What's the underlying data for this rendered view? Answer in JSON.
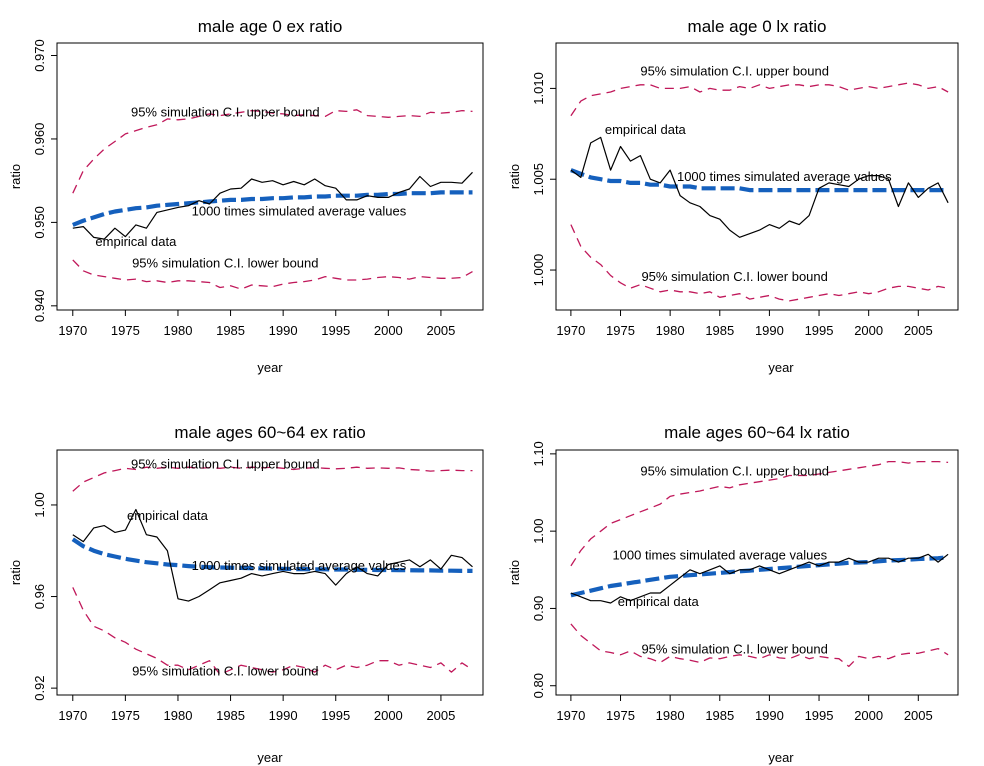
{
  "colors": {
    "empirical": "#000000",
    "average": "#1560bd",
    "bounds": "#c0185a",
    "axis": "#000000"
  },
  "chart_data": [
    {
      "type": "line",
      "title": "male age 0 ex ratio",
      "xlabel": "year",
      "ylabel": "ratio",
      "xlim": [
        1968.5,
        2009
      ],
      "ylim": [
        0.9395,
        0.9715
      ],
      "xticks": [
        1970,
        1975,
        1980,
        1985,
        1990,
        1995,
        2000,
        2005
      ],
      "yticks": [
        0.94,
        0.95,
        0.96,
        0.97
      ],
      "ytick_labels": [
        "0.940",
        "0.950",
        "0.960",
        "0.970"
      ],
      "annotations": [
        {
          "text": "95% simulation C.I. upper bound",
          "x": 1984.5,
          "y": 0.9627
        },
        {
          "text": "1000 times simulated average values",
          "x": 1991.5,
          "y": 0.9508
        },
        {
          "text": "empirical data",
          "x": 1976.0,
          "y": 0.9472
        },
        {
          "text": "95% simulation C.I. lower bound",
          "x": 1984.5,
          "y": 0.9446
        }
      ],
      "series": [
        {
          "name": "95% simulation C.I. upper bound",
          "style": "bounds",
          "values": [
            0.9535,
            0.9562,
            0.9576,
            0.9588,
            0.9597,
            0.9606,
            0.961,
            0.9614,
            0.9617,
            0.9624,
            0.9623,
            0.9624,
            0.9627,
            0.963,
            0.9628,
            0.963,
            0.9632,
            0.9634,
            0.9633,
            0.9631,
            0.963,
            0.9628,
            0.9629,
            0.9628,
            0.9627,
            0.9634,
            0.9633,
            0.9635,
            0.9628,
            0.9627,
            0.9626,
            0.9627,
            0.9628,
            0.9627,
            0.9632,
            0.9631,
            0.9632,
            0.9634,
            0.9633
          ]
        },
        {
          "name": "1000 times simulated average values",
          "style": "average",
          "values": [
            0.9497,
            0.9502,
            0.9506,
            0.951,
            0.9513,
            0.9515,
            0.9517,
            0.9518,
            0.952,
            0.9521,
            0.9522,
            0.9523,
            0.9524,
            0.9525,
            0.9526,
            0.9527,
            0.9527,
            0.9528,
            0.9528,
            0.9529,
            0.9529,
            0.953,
            0.953,
            0.9531,
            0.9531,
            0.9532,
            0.9532,
            0.9532,
            0.9533,
            0.9533,
            0.9534,
            0.9534,
            0.9535,
            0.9535,
            0.9535,
            0.9536,
            0.9536,
            0.9536,
            0.9536
          ]
        },
        {
          "name": "empirical data",
          "style": "empirical",
          "values": [
            0.9493,
            0.9495,
            0.9482,
            0.948,
            0.9493,
            0.9483,
            0.9497,
            0.9493,
            0.9512,
            0.9515,
            0.9518,
            0.952,
            0.9526,
            0.9522,
            0.9535,
            0.954,
            0.9541,
            0.9552,
            0.9548,
            0.955,
            0.9545,
            0.9549,
            0.9545,
            0.9552,
            0.9544,
            0.9541,
            0.9527,
            0.9527,
            0.9532,
            0.953,
            0.953,
            0.9536,
            0.954,
            0.9555,
            0.9543,
            0.9548,
            0.9548,
            0.9547,
            0.956
          ]
        },
        {
          "name": "95% simulation C.I. lower bound",
          "style": "bounds",
          "values": [
            0.9455,
            0.9442,
            0.9437,
            0.9435,
            0.9433,
            0.9431,
            0.9432,
            0.9429,
            0.943,
            0.9428,
            0.943,
            0.943,
            0.9429,
            0.9428,
            0.9422,
            0.9424,
            0.942,
            0.9425,
            0.9424,
            0.9423,
            0.9426,
            0.9428,
            0.9429,
            0.9431,
            0.9435,
            0.9433,
            0.9431,
            0.9431,
            0.9432,
            0.9434,
            0.9435,
            0.9434,
            0.9432,
            0.9435,
            0.9434,
            0.9433,
            0.9433,
            0.9434,
            0.9441
          ]
        }
      ]
    },
    {
      "type": "line",
      "title": "male age 0  lx ratio",
      "xlabel": "year",
      "ylabel": "ratio",
      "xlim": [
        1968.5,
        2009
      ],
      "ylim": [
        0.9978,
        1.0125
      ],
      "xticks": [
        1970,
        1975,
        1980,
        1985,
        1990,
        1995,
        2000,
        2005
      ],
      "yticks": [
        1.0,
        1.005,
        1.01
      ],
      "ytick_labels": [
        "1.000",
        "1.005",
        "1.010"
      ],
      "annotations": [
        {
          "text": "95% simulation C.I. upper bound",
          "x": 1986.5,
          "y": 1.0107
        },
        {
          "text": "empirical data",
          "x": 1977.5,
          "y": 1.0075
        },
        {
          "text": "1000 times simulated average values",
          "x": 1991.5,
          "y": 1.0049
        },
        {
          "text": "95% simulation C.I. lower bound",
          "x": 1986.5,
          "y": 0.9994
        }
      ],
      "series": [
        {
          "name": "95% simulation C.I. upper bound",
          "style": "bounds",
          "values": [
            1.0085,
            1.0093,
            1.0096,
            1.0097,
            1.0098,
            1.01,
            1.0101,
            1.0102,
            1.0102,
            1.01,
            1.01,
            1.01,
            1.0101,
            1.0098,
            1.01,
            1.0099,
            1.0099,
            1.0101,
            1.01,
            1.0102,
            1.01,
            1.0101,
            1.0102,
            1.0102,
            1.0101,
            1.0102,
            1.0102,
            1.0101,
            1.0099,
            1.01,
            1.0101,
            1.01,
            1.0101,
            1.0102,
            1.0103,
            1.0102,
            1.01,
            1.0101,
            1.0098
          ]
        },
        {
          "name": "1000 times simulated average values",
          "style": "average",
          "values": [
            1.0055,
            1.0053,
            1.0051,
            1.005,
            1.0049,
            1.0049,
            1.0048,
            1.0048,
            1.0047,
            1.0047,
            1.0046,
            1.0046,
            1.0046,
            1.0045,
            1.0045,
            1.0045,
            1.0045,
            1.0045,
            1.0044,
            1.0044,
            1.0044,
            1.0044,
            1.0044,
            1.0044,
            1.0044,
            1.0044,
            1.0044,
            1.0044,
            1.0044,
            1.0044,
            1.0044,
            1.0044,
            1.0044,
            1.0044,
            1.0044,
            1.0044,
            1.0044,
            1.0044,
            1.0044
          ]
        },
        {
          "name": "empirical data",
          "style": "empirical",
          "values": [
            1.0055,
            1.0051,
            1.007,
            1.0073,
            1.0055,
            1.0068,
            1.006,
            1.0063,
            1.005,
            1.0048,
            1.0055,
            1.0041,
            1.0037,
            1.0035,
            1.003,
            1.0028,
            1.0022,
            1.0018,
            1.002,
            1.0022,
            1.0025,
            1.0023,
            1.0027,
            1.0025,
            1.003,
            1.0045,
            1.0048,
            1.0047,
            1.0046,
            1.005,
            1.0052,
            1.0052,
            1.005,
            1.0035,
            1.0048,
            1.004,
            1.0045,
            1.0048,
            1.0037
          ]
        },
        {
          "name": "95% simulation C.I. lower bound",
          "style": "bounds",
          "values": [
            1.0025,
            1.0013,
            1.0007,
            1.0003,
            0.9997,
            0.9993,
            0.999,
            0.9992,
            0.999,
            0.9988,
            0.9989,
            0.9988,
            0.9988,
            0.9987,
            0.9988,
            0.9985,
            0.9986,
            0.9987,
            0.9984,
            0.9985,
            0.9986,
            0.9984,
            0.9983,
            0.9984,
            0.9985,
            0.9986,
            0.9987,
            0.9986,
            0.9987,
            0.9988,
            0.9987,
            0.9988,
            0.999,
            0.9991,
            0.9991,
            0.999,
            0.9989,
            0.9991,
            0.999
          ]
        }
      ]
    },
    {
      "type": "line",
      "title": "male ages 60~64  ex ratio",
      "xlabel": "year",
      "ylabel": "ratio",
      "xlim": [
        1968.5,
        2009
      ],
      "ylim": [
        0.917,
        1.024
      ],
      "xticks": [
        1970,
        1975,
        1980,
        1985,
        1990,
        1995,
        2000,
        2005
      ],
      "yticks": [
        0.92,
        0.96,
        1.0
      ],
      "ytick_labels": [
        "0.92",
        "0.96",
        "1.00"
      ],
      "annotations": [
        {
          "text": "95% simulation C.I. upper bound",
          "x": 1984.5,
          "y": 1.016
        },
        {
          "text": "empirical data",
          "x": 1979.0,
          "y": 0.9935
        },
        {
          "text": "1000 times simulated average values",
          "x": 1991.5,
          "y": 0.9715
        },
        {
          "text": "95% simulation C.I. lower bound",
          "x": 1984.5,
          "y": 0.9256
        }
      ],
      "series": [
        {
          "name": "95% simulation C.I. upper bound",
          "style": "bounds",
          "values": [
            1.006,
            1.01,
            1.012,
            1.014,
            1.015,
            1.016,
            1.0155,
            1.0165,
            1.016,
            1.0165,
            1.016,
            1.0165,
            1.016,
            1.0163,
            1.016,
            1.0165,
            1.016,
            1.0165,
            1.0162,
            1.0165,
            1.016,
            1.0155,
            1.016,
            1.0163,
            1.016,
            1.0158,
            1.016,
            1.0165,
            1.016,
            1.0162,
            1.016,
            1.0162,
            1.0155,
            1.0152,
            1.0148,
            1.015,
            1.0152,
            1.015,
            1.015
          ]
        },
        {
          "name": "1000 times simulated average values",
          "style": "average",
          "values": [
            0.985,
            0.982,
            0.98,
            0.9785,
            0.9775,
            0.9765,
            0.9757,
            0.975,
            0.9745,
            0.974,
            0.9737,
            0.9733,
            0.973,
            0.9728,
            0.9727,
            0.9726,
            0.9725,
            0.9724,
            0.9723,
            0.9722,
            0.9721,
            0.972,
            0.972,
            0.9719,
            0.9719,
            0.9718,
            0.9718,
            0.9717,
            0.9717,
            0.9716,
            0.9716,
            0.9715,
            0.9715,
            0.9714,
            0.9714,
            0.9713,
            0.9713,
            0.9712,
            0.9712
          ]
        },
        {
          "name": "empirical data",
          "style": "empirical",
          "values": [
            0.987,
            0.984,
            0.99,
            0.991,
            0.988,
            0.989,
            0.998,
            0.987,
            0.986,
            0.98,
            0.959,
            0.958,
            0.96,
            0.963,
            0.966,
            0.967,
            0.968,
            0.97,
            0.969,
            0.97,
            0.971,
            0.97,
            0.97,
            0.971,
            0.97,
            0.965,
            0.97,
            0.973,
            0.97,
            0.969,
            0.974,
            0.975,
            0.976,
            0.973,
            0.976,
            0.972,
            0.978,
            0.977,
            0.973
          ]
        },
        {
          "name": "95% simulation C.I. lower bound",
          "style": "bounds",
          "values": [
            0.964,
            0.954,
            0.947,
            0.945,
            0.942,
            0.94,
            0.937,
            0.935,
            0.933,
            0.93,
            0.93,
            0.928,
            0.93,
            0.932,
            0.926,
            0.928,
            0.93,
            0.929,
            0.928,
            0.927,
            0.928,
            0.93,
            0.929,
            0.927,
            0.93,
            0.928,
            0.93,
            0.929,
            0.93,
            0.932,
            0.932,
            0.93,
            0.931,
            0.93,
            0.929,
            0.931,
            0.927,
            0.931,
            0.928
          ]
        }
      ]
    },
    {
      "type": "line",
      "title": "male ages 60~64  lx ratio",
      "xlabel": "year",
      "ylabel": "ratio",
      "xlim": [
        1968.5,
        2009
      ],
      "ylim": [
        0.788,
        1.105
      ],
      "xticks": [
        1970,
        1975,
        1980,
        1985,
        1990,
        1995,
        2000,
        2005
      ],
      "yticks": [
        0.8,
        0.9,
        1.0,
        1.1
      ],
      "ytick_labels": [
        "0.80",
        "0.90",
        "1.00",
        "1.10"
      ],
      "annotations": [
        {
          "text": "95% simulation C.I. upper bound",
          "x": 1986.5,
          "y": 1.072
        },
        {
          "text": "1000 times simulated average values",
          "x": 1985.0,
          "y": 0.963
        },
        {
          "text": "empirical data",
          "x": 1978.8,
          "y": 0.903
        },
        {
          "text": "95% simulation C.I. lower bound",
          "x": 1986.5,
          "y": 0.842
        }
      ],
      "series": [
        {
          "name": "95% simulation C.I. upper bound",
          "style": "bounds",
          "values": [
            0.955,
            0.975,
            0.99,
            1.0,
            1.01,
            1.015,
            1.02,
            1.025,
            1.03,
            1.035,
            1.045,
            1.048,
            1.05,
            1.052,
            1.055,
            1.058,
            1.056,
            1.06,
            1.062,
            1.064,
            1.066,
            1.068,
            1.072,
            1.072,
            1.072,
            1.074,
            1.076,
            1.078,
            1.08,
            1.082,
            1.084,
            1.086,
            1.09,
            1.09,
            1.088,
            1.09,
            1.09,
            1.09,
            1.089
          ]
        },
        {
          "name": "1000 times simulated average values",
          "style": "average",
          "values": [
            0.917,
            0.92,
            0.923,
            0.926,
            0.929,
            0.931,
            0.933,
            0.935,
            0.937,
            0.939,
            0.941,
            0.942,
            0.943,
            0.944,
            0.945,
            0.946,
            0.947,
            0.948,
            0.949,
            0.95,
            0.951,
            0.952,
            0.953,
            0.954,
            0.955,
            0.956,
            0.957,
            0.958,
            0.959,
            0.9595,
            0.96,
            0.961,
            0.962,
            0.9625,
            0.963,
            0.964,
            0.9645,
            0.965,
            0.966
          ]
        },
        {
          "name": "empirical data",
          "style": "empirical",
          "values": [
            0.92,
            0.915,
            0.91,
            0.91,
            0.907,
            0.915,
            0.91,
            0.915,
            0.92,
            0.92,
            0.93,
            0.94,
            0.95,
            0.945,
            0.95,
            0.955,
            0.945,
            0.95,
            0.95,
            0.955,
            0.95,
            0.945,
            0.95,
            0.955,
            0.96,
            0.955,
            0.96,
            0.96,
            0.965,
            0.96,
            0.96,
            0.965,
            0.965,
            0.96,
            0.965,
            0.965,
            0.97,
            0.96,
            0.97
          ]
        },
        {
          "name": "95% simulation C.I. lower bound",
          "style": "bounds",
          "values": [
            0.88,
            0.865,
            0.855,
            0.845,
            0.843,
            0.84,
            0.845,
            0.838,
            0.835,
            0.83,
            0.838,
            0.835,
            0.833,
            0.83,
            0.836,
            0.835,
            0.838,
            0.84,
            0.838,
            0.835,
            0.84,
            0.836,
            0.835,
            0.84,
            0.835,
            0.838,
            0.836,
            0.835,
            0.825,
            0.838,
            0.835,
            0.838,
            0.835,
            0.84,
            0.842,
            0.842,
            0.845,
            0.848,
            0.84
          ]
        }
      ]
    }
  ]
}
